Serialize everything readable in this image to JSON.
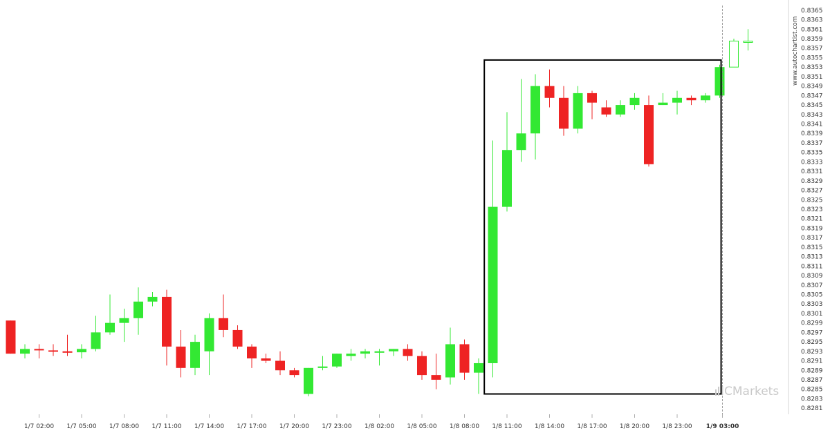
{
  "chart_data": {
    "type": "candlestick",
    "x_tick_labels": [
      "1/7 02:00",
      "1/7 05:00",
      "1/7 08:00",
      "1/7 11:00",
      "1/7 14:00",
      "1/7 17:00",
      "1/7 20:00",
      "1/7 23:00",
      "1/8 02:00",
      "1/8 05:00",
      "1/8 08:00",
      "1/8 11:00",
      "1/8 14:00",
      "1/8 17:00",
      "1/8 20:00",
      "1/8 23:00",
      "1/9 03:00"
    ],
    "highlighted_tick": "1/9 03:00",
    "y_tick_labels": [
      "0.8281",
      "0.8283",
      "0.8285",
      "0.8287",
      "0.8289",
      "0.8291",
      "0.8293",
      "0.8295",
      "0.8297",
      "0.8299",
      "0.8301",
      "0.8303",
      "0.8305",
      "0.8307",
      "0.8309",
      "0.8311",
      "0.8313",
      "0.8315",
      "0.8317",
      "0.8319",
      "0.8321",
      "0.8323",
      "0.8325",
      "0.8327",
      "0.8329",
      "0.8331",
      "0.8333",
      "0.8335",
      "0.8337",
      "0.8339",
      "0.8341",
      "0.8343",
      "0.8345",
      "0.8347",
      "0.8349",
      "0.8351",
      "0.8353",
      "0.8355",
      "0.8357",
      "0.8359",
      "0.8361",
      "0.8363",
      "0.8365"
    ],
    "ylim": [
      0.828,
      0.8366
    ],
    "hours_per_candle": 1,
    "series": [
      {
        "t": 0,
        "o": 0.82995,
        "h": 0.82995,
        "l": 0.82925,
        "c": 0.82925
      },
      {
        "t": 1,
        "o": 0.82925,
        "h": 0.82945,
        "l": 0.82915,
        "c": 0.82935
      },
      {
        "t": 2,
        "o": 0.82935,
        "h": 0.82945,
        "l": 0.82915,
        "c": 0.82932
      },
      {
        "t": 3,
        "o": 0.82932,
        "h": 0.82945,
        "l": 0.8292,
        "c": 0.8293
      },
      {
        "t": 4,
        "o": 0.8293,
        "h": 0.82965,
        "l": 0.8292,
        "c": 0.82928
      },
      {
        "t": 5,
        "o": 0.82928,
        "h": 0.82945,
        "l": 0.82915,
        "c": 0.82935
      },
      {
        "t": 6,
        "o": 0.82935,
        "h": 0.83005,
        "l": 0.8293,
        "c": 0.8297
      },
      {
        "t": 7,
        "o": 0.8297,
        "h": 0.8305,
        "l": 0.82965,
        "c": 0.8299
      },
      {
        "t": 8,
        "o": 0.8299,
        "h": 0.8302,
        "l": 0.8295,
        "c": 0.83
      },
      {
        "t": 9,
        "o": 0.83,
        "h": 0.83065,
        "l": 0.82965,
        "c": 0.83035
      },
      {
        "t": 10,
        "o": 0.83035,
        "h": 0.83055,
        "l": 0.83025,
        "c": 0.83045
      },
      {
        "t": 11,
        "o": 0.83045,
        "h": 0.8306,
        "l": 0.829,
        "c": 0.8294
      },
      {
        "t": 12,
        "o": 0.8294,
        "h": 0.82975,
        "l": 0.82875,
        "c": 0.82895
      },
      {
        "t": 13,
        "o": 0.82895,
        "h": 0.82965,
        "l": 0.8288,
        "c": 0.8295
      },
      {
        "t": 14,
        "o": 0.8293,
        "h": 0.8301,
        "l": 0.8288,
        "c": 0.83
      },
      {
        "t": 15,
        "o": 0.83,
        "h": 0.8305,
        "l": 0.8296,
        "c": 0.82975
      },
      {
        "t": 16,
        "o": 0.82975,
        "h": 0.82985,
        "l": 0.82935,
        "c": 0.8294
      },
      {
        "t": 17,
        "o": 0.8294,
        "h": 0.82945,
        "l": 0.82895,
        "c": 0.82915
      },
      {
        "t": 18,
        "o": 0.82915,
        "h": 0.82925,
        "l": 0.82905,
        "c": 0.8291
      },
      {
        "t": 19,
        "o": 0.8291,
        "h": 0.8293,
        "l": 0.8288,
        "c": 0.8289
      },
      {
        "t": 20,
        "o": 0.8289,
        "h": 0.82895,
        "l": 0.82875,
        "c": 0.8288
      },
      {
        "t": 21,
        "o": 0.8284,
        "h": 0.82895,
        "l": 0.82835,
        "c": 0.82895
      },
      {
        "t": 22,
        "o": 0.82895,
        "h": 0.8292,
        "l": 0.8289,
        "c": 0.82898
      },
      {
        "t": 23,
        "o": 0.82898,
        "h": 0.82925,
        "l": 0.82895,
        "c": 0.82925
      },
      {
        "t": 24,
        "o": 0.8292,
        "h": 0.82935,
        "l": 0.8291,
        "c": 0.82925
      },
      {
        "t": 25,
        "o": 0.82925,
        "h": 0.82935,
        "l": 0.82915,
        "c": 0.8293
      },
      {
        "t": 26,
        "o": 0.8293,
        "h": 0.82935,
        "l": 0.829,
        "c": 0.8293
      },
      {
        "t": 27,
        "o": 0.8293,
        "h": 0.82935,
        "l": 0.8292,
        "c": 0.82935
      },
      {
        "t": 28,
        "o": 0.82935,
        "h": 0.82945,
        "l": 0.8291,
        "c": 0.8292
      },
      {
        "t": 29,
        "o": 0.8292,
        "h": 0.8293,
        "l": 0.8287,
        "c": 0.8288
      },
      {
        "t": 30,
        "o": 0.8288,
        "h": 0.82925,
        "l": 0.8285,
        "c": 0.8287
      },
      {
        "t": 31,
        "o": 0.82875,
        "h": 0.8298,
        "l": 0.8286,
        "c": 0.82945
      },
      {
        "t": 32,
        "o": 0.82945,
        "h": 0.82955,
        "l": 0.8287,
        "c": 0.82885
      },
      {
        "t": 33,
        "o": 0.82885,
        "h": 0.82915,
        "l": 0.8284,
        "c": 0.82905
      },
      {
        "t": 34,
        "o": 0.82905,
        "h": 0.83375,
        "l": 0.82875,
        "c": 0.83235
      },
      {
        "t": 35,
        "o": 0.83235,
        "h": 0.83435,
        "l": 0.83225,
        "c": 0.83355
      },
      {
        "t": 36,
        "o": 0.83355,
        "h": 0.83505,
        "l": 0.8333,
        "c": 0.8339
      },
      {
        "t": 37,
        "o": 0.8339,
        "h": 0.83515,
        "l": 0.83335,
        "c": 0.8349
      },
      {
        "t": 38,
        "o": 0.8349,
        "h": 0.83525,
        "l": 0.83445,
        "c": 0.83465
      },
      {
        "t": 39,
        "o": 0.83465,
        "h": 0.8349,
        "l": 0.83385,
        "c": 0.834
      },
      {
        "t": 40,
        "o": 0.834,
        "h": 0.8349,
        "l": 0.8339,
        "c": 0.83475
      },
      {
        "t": 41,
        "o": 0.83475,
        "h": 0.8348,
        "l": 0.8342,
        "c": 0.83455
      },
      {
        "t": 42,
        "o": 0.83445,
        "h": 0.8346,
        "l": 0.83425,
        "c": 0.8343
      },
      {
        "t": 43,
        "o": 0.8343,
        "h": 0.8346,
        "l": 0.83425,
        "c": 0.8345
      },
      {
        "t": 44,
        "o": 0.8345,
        "h": 0.83475,
        "l": 0.8344,
        "c": 0.83465
      },
      {
        "t": 45,
        "o": 0.8345,
        "h": 0.8347,
        "l": 0.8332,
        "c": 0.83325
      },
      {
        "t": 46,
        "o": 0.8345,
        "h": 0.83475,
        "l": 0.8345,
        "c": 0.83455
      },
      {
        "t": 47,
        "o": 0.83455,
        "h": 0.8348,
        "l": 0.8343,
        "c": 0.83465
      },
      {
        "t": 48,
        "o": 0.83465,
        "h": 0.8347,
        "l": 0.8345,
        "c": 0.8346
      },
      {
        "t": 49,
        "o": 0.8346,
        "h": 0.83475,
        "l": 0.83455,
        "c": 0.8347
      },
      {
        "t": 50,
        "o": 0.8347,
        "h": 0.83535,
        "l": 0.83465,
        "c": 0.8353
      },
      {
        "t": 51,
        "o": 0.8353,
        "h": 0.8359,
        "l": 0.8353,
        "c": 0.83585,
        "hollow": true
      },
      {
        "t": 52,
        "o": 0.83585,
        "h": 0.8361,
        "l": 0.83565,
        "c": 0.83585,
        "hollow": true
      }
    ],
    "x_tick_positions": [
      2,
      5,
      8,
      11,
      14,
      17,
      20,
      23,
      26,
      29,
      32,
      35,
      38,
      41,
      44,
      47,
      50.2
    ],
    "highlight_box": {
      "x_from": 33.4,
      "x_to": 50.1,
      "y_from": 0.8284,
      "y_to": 0.83545
    },
    "vertical_line_at": 50.2,
    "colors": {
      "up": "#33e833",
      "down": "#ee2323",
      "hollow_up": "#33e833",
      "box": "#000000",
      "grid": "#e8e8e8"
    }
  },
  "watermark": {
    "text": "www.autochartist.com"
  },
  "brand": {
    "logo_text": "ICMarkets",
    "icon": "bar-chart-icon"
  }
}
